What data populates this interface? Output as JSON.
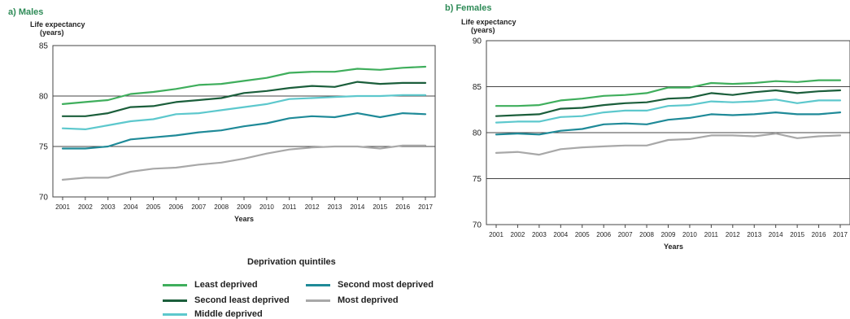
{
  "chart_data": [
    {
      "type": "line",
      "title": "a) Males",
      "ylabel_line1": "Life expectancy",
      "ylabel_line2": "(years)",
      "xlabel": "Years",
      "ylim": [
        70,
        85
      ],
      "yticks": [
        70,
        75,
        80,
        85
      ],
      "x": [
        "2001",
        "2002",
        "2003",
        "2004",
        "2005",
        "2006",
        "2007",
        "2008",
        "2009",
        "2010",
        "2011",
        "2012",
        "2013",
        "2014",
        "2015",
        "2016",
        "2017"
      ],
      "series": [
        {
          "name": "Least deprived",
          "color": "#3fae5c",
          "values": [
            79.2,
            79.4,
            79.6,
            80.2,
            80.4,
            80.7,
            81.1,
            81.2,
            81.5,
            81.8,
            82.3,
            82.4,
            82.4,
            82.7,
            82.6,
            82.8,
            82.9
          ]
        },
        {
          "name": "Second least deprived",
          "color": "#1b5e3b",
          "values": [
            78.0,
            78.0,
            78.3,
            78.9,
            79.0,
            79.4,
            79.6,
            79.8,
            80.3,
            80.5,
            80.8,
            81.0,
            80.9,
            81.4,
            81.2,
            81.3,
            81.3
          ]
        },
        {
          "name": "Middle deprived",
          "color": "#5dc8cd",
          "values": [
            76.8,
            76.7,
            77.1,
            77.5,
            77.7,
            78.2,
            78.3,
            78.6,
            78.9,
            79.2,
            79.7,
            79.8,
            79.9,
            80.0,
            80.0,
            80.1,
            80.1
          ]
        },
        {
          "name": "Second most deprived",
          "color": "#1f8a98",
          "values": [
            74.8,
            74.8,
            75.0,
            75.7,
            75.9,
            76.1,
            76.4,
            76.6,
            77.0,
            77.3,
            77.8,
            78.0,
            77.9,
            78.3,
            77.9,
            78.3,
            78.2
          ]
        },
        {
          "name": "Most deprived",
          "color": "#a8a8a8",
          "values": [
            71.7,
            71.9,
            71.9,
            72.5,
            72.8,
            72.9,
            73.2,
            73.4,
            73.8,
            74.3,
            74.7,
            74.9,
            75.0,
            75.0,
            74.8,
            75.1,
            75.1
          ]
        }
      ]
    },
    {
      "type": "line",
      "title": "b) Females",
      "ylabel_line1": "Life expectancy",
      "ylabel_line2": "(years)",
      "xlabel": "Years",
      "ylim": [
        70,
        90
      ],
      "yticks": [
        70,
        75,
        80,
        85,
        90
      ],
      "x": [
        "2001",
        "2002",
        "2003",
        "2004",
        "2005",
        "2006",
        "2007",
        "2008",
        "2009",
        "2010",
        "2011",
        "2012",
        "2013",
        "2014",
        "2015",
        "2016",
        "2017"
      ],
      "series": [
        {
          "name": "Least deprived",
          "color": "#3fae5c",
          "values": [
            82.9,
            82.9,
            83.0,
            83.5,
            83.7,
            84.0,
            84.1,
            84.3,
            84.9,
            84.9,
            85.4,
            85.3,
            85.4,
            85.6,
            85.5,
            85.7,
            85.7
          ]
        },
        {
          "name": "Second least deprived",
          "color": "#1b5e3b",
          "values": [
            81.8,
            81.9,
            82.0,
            82.6,
            82.7,
            83.0,
            83.2,
            83.3,
            83.7,
            83.8,
            84.3,
            84.1,
            84.4,
            84.6,
            84.3,
            84.5,
            84.6
          ]
        },
        {
          "name": "Middle deprived",
          "color": "#5dc8cd",
          "values": [
            81.1,
            81.2,
            81.2,
            81.7,
            81.8,
            82.2,
            82.4,
            82.4,
            82.9,
            83.0,
            83.4,
            83.3,
            83.4,
            83.6,
            83.2,
            83.5,
            83.5
          ]
        },
        {
          "name": "Second most deprived",
          "color": "#1f8a98",
          "values": [
            79.8,
            79.9,
            79.8,
            80.2,
            80.4,
            80.9,
            81.0,
            80.9,
            81.4,
            81.6,
            82.0,
            81.9,
            82.0,
            82.2,
            82.0,
            82.0,
            82.2
          ]
        },
        {
          "name": "Most deprived",
          "color": "#a8a8a8",
          "values": [
            77.8,
            77.9,
            77.6,
            78.2,
            78.4,
            78.5,
            78.6,
            78.6,
            79.2,
            79.3,
            79.7,
            79.7,
            79.6,
            79.9,
            79.4,
            79.6,
            79.7
          ]
        }
      ]
    }
  ],
  "legend": {
    "title": "Deprivation quintiles",
    "items": [
      {
        "label": "Least deprived",
        "color": "#3fae5c"
      },
      {
        "label": "Second most deprived",
        "color": "#1f8a98"
      },
      {
        "label": "Second least deprived",
        "color": "#1b5e3b"
      },
      {
        "label": "Most deprived",
        "color": "#a8a8a8"
      },
      {
        "label": "Middle deprived",
        "color": "#5dc8cd"
      }
    ]
  }
}
